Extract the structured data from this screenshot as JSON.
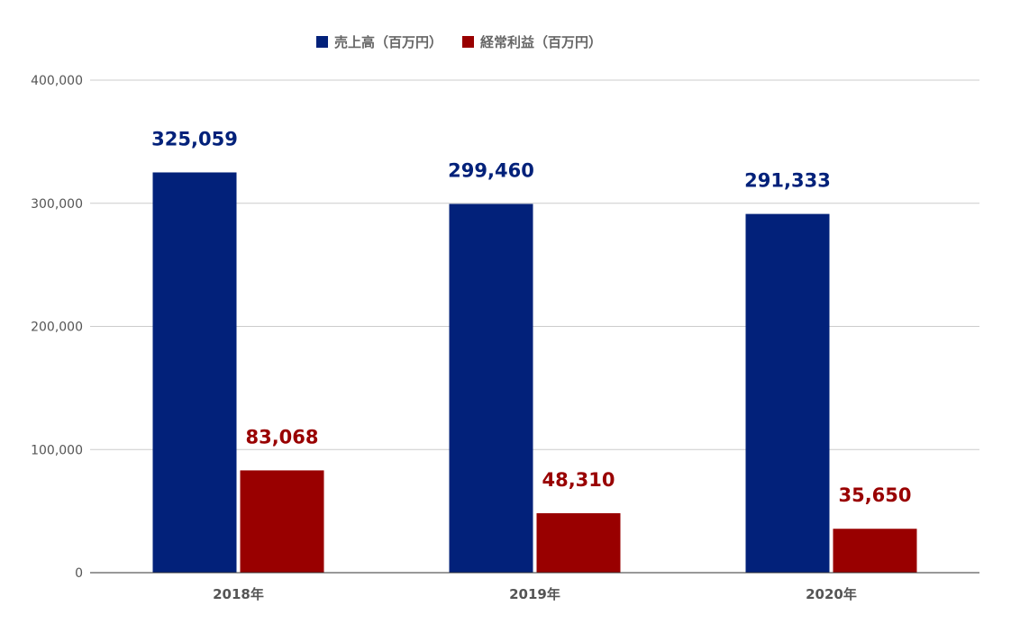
{
  "chart_data": {
    "type": "bar",
    "categories": [
      "2018年",
      "2019年",
      "2020年"
    ],
    "series": [
      {
        "name": "売上高（百万円）",
        "values": [
          325059,
          299460,
          291333
        ],
        "color": "#02217a",
        "labels": [
          "325,059",
          "299,460",
          "291,333"
        ]
      },
      {
        "name": "経常利益（百万円）",
        "values": [
          83068,
          48310,
          35650
        ],
        "color": "#990000",
        "labels": [
          "83,068",
          "48,310",
          "35,650"
        ]
      }
    ],
    "ylim": [
      0,
      400000
    ],
    "yticks": [
      0,
      100000,
      200000,
      300000,
      400000
    ],
    "ytick_labels": [
      "0",
      "100,000",
      "200,000",
      "300,000",
      "400,000"
    ],
    "grid": true,
    "legend_position": "top-center",
    "axis_color": "#333333",
    "grid_color": "#cccccc"
  }
}
